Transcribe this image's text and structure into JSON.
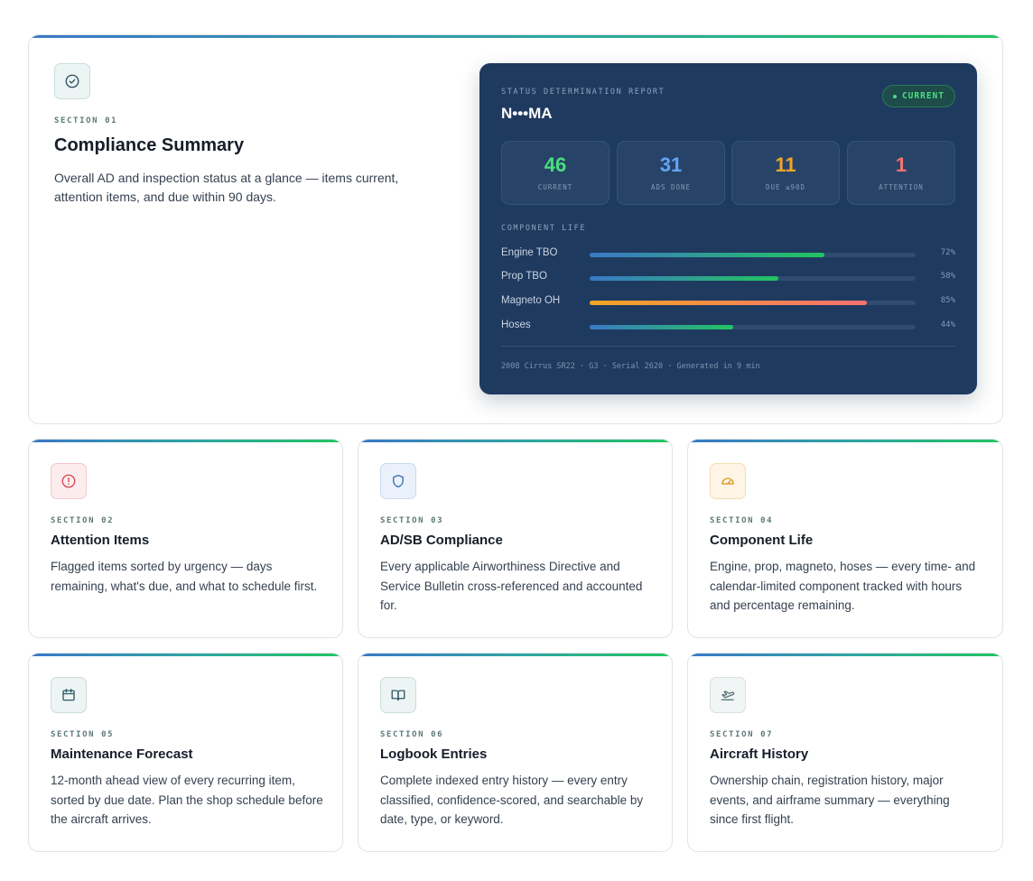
{
  "summary": {
    "section": "SECTION 01",
    "title": "Compliance Summary",
    "description": "Overall AD and inspection status at a glance — items current, attention items, and due within 90 days.",
    "icon": "check-circle-icon",
    "report": {
      "label": "STATUS DETERMINATION REPORT",
      "tail_number": "N•••MA",
      "status": "CURRENT",
      "stats": [
        {
          "value": "46",
          "label": "CURRENT",
          "color": "#4ade80"
        },
        {
          "value": "31",
          "label": "ADS DONE",
          "color": "#60a5fa"
        },
        {
          "value": "11",
          "label": "DUE ≤90D",
          "color": "#f5a524"
        },
        {
          "value": "1",
          "label": "ATTENTION",
          "color": "#f87171"
        }
      ],
      "component_label": "COMPONENT LIFE",
      "components": [
        {
          "name": "Engine TBO",
          "percent_label": "72%",
          "fraction": 0.72,
          "style": "normal"
        },
        {
          "name": "Prop TBO",
          "percent_label": "58%",
          "fraction": 0.58,
          "style": "normal"
        },
        {
          "name": "Magneto OH",
          "percent_label": "85%",
          "fraction": 0.85,
          "style": "warn"
        },
        {
          "name": "Hoses",
          "percent_label": "44%",
          "fraction": 0.44,
          "style": "normal"
        }
      ],
      "footer": "2008 Cirrus SR22 · G3 · Serial 2620 · Generated in 9 min"
    }
  },
  "sections": [
    {
      "section": "SECTION 02",
      "title": "Attention Items",
      "description": "Flagged items sorted by urgency — days remaining, what's due, and what to schedule first.",
      "icon": "alert-circle-icon"
    },
    {
      "section": "SECTION 03",
      "title": "AD/SB Compliance",
      "description": "Every applicable Airworthiness Directive and Service Bulletin cross-referenced and accounted for.",
      "icon": "shield-icon"
    },
    {
      "section": "SECTION 04",
      "title": "Component Life",
      "description": "Engine, prop, magneto, hoses — every time- and calendar-limited component tracked with hours and percentage remaining.",
      "icon": "gauge-icon"
    },
    {
      "section": "SECTION 05",
      "title": "Maintenance Forecast",
      "description": "12-month ahead view of every recurring item, sorted by due date. Plan the shop schedule before the aircraft arrives.",
      "icon": "calendar-icon"
    },
    {
      "section": "SECTION 06",
      "title": "Logbook Entries",
      "description": "Complete indexed entry history — every entry classified, confidence-scored, and searchable by date, type, or keyword.",
      "icon": "book-open-icon"
    },
    {
      "section": "SECTION 07",
      "title": "Aircraft History",
      "description": "Ownership chain, registration history, major events, and airframe summary — everything since first flight.",
      "icon": "plane-takeoff-icon"
    }
  ]
}
